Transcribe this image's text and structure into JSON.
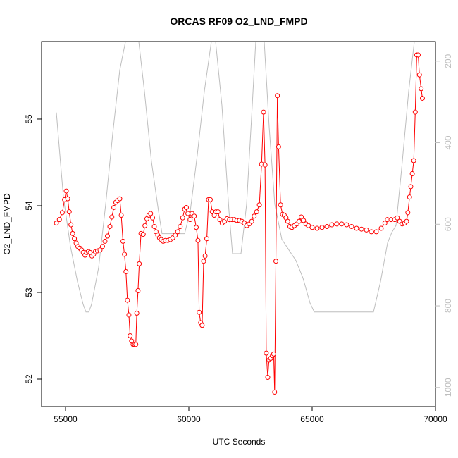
{
  "chart_data": {
    "type": "line",
    "title": "ORCAS RF09 O2_LND_FMPD",
    "xlabel": "UTC Seconds",
    "ylabel": "O2_LND_FMPD",
    "xlim": [
      54029,
      70000
    ],
    "xticks": [
      55000,
      60000,
      65000,
      70000
    ],
    "ylim": [
      51.683,
      55.894
    ],
    "yticks": [
      52,
      53,
      54,
      55
    ],
    "y2lim": [
      1047,
      152
    ],
    "y2ticks": [
      200,
      400,
      600,
      800,
      1000
    ],
    "series": [
      {
        "color": "#bebebe",
        "axis": "y2",
        "marker": "none",
        "x": [
          54629,
          54771,
          54914,
          55200,
          55486,
          55714,
          55829,
          55943,
          56057,
          56343,
          56629,
          56914,
          57200,
          57657,
          57971,
          58200,
          58486,
          58771,
          58914,
          59343,
          59829,
          60057,
          60343,
          60629,
          60914,
          61000,
          61086,
          61343,
          61629,
          61771,
          62114,
          62343,
          62571,
          62714,
          62886,
          63057,
          63257,
          63486,
          63771,
          64343,
          64629,
          64914,
          65086,
          67486,
          67771,
          68057,
          68229,
          68400,
          68629,
          68914,
          69143,
          69257
        ],
        "values": [
          326,
          430,
          533,
          654,
          741,
          796,
          815,
          815,
          796,
          706,
          551,
          378,
          222,
          84,
          152,
          274,
          447,
          568,
          623,
          623,
          623,
          568,
          430,
          274,
          152,
          101,
          152,
          309,
          568,
          672,
          672,
          551,
          309,
          152,
          101,
          152,
          361,
          551,
          637,
          689,
          732,
          793,
          815,
          815,
          741,
          646,
          620,
          603,
          464,
          274,
          152,
          101
        ]
      },
      {
        "color": "#ff0000",
        "marker": "circle",
        "x": [
          54630,
          54750,
          54870,
          54960,
          55030,
          55090,
          55150,
          55220,
          55290,
          55360,
          55430,
          55500,
          55580,
          55650,
          55720,
          55790,
          55860,
          55930,
          56000,
          56070,
          56140,
          56210,
          56300,
          56400,
          56500,
          56600,
          56700,
          56800,
          56880,
          56960,
          57040,
          57120,
          57200,
          57260,
          57330,
          57390,
          57450,
          57510,
          57570,
          57620,
          57680,
          57740,
          57800,
          57850,
          57890,
          57940,
          57990,
          58060,
          58150,
          58220,
          58300,
          58380,
          58450,
          58530,
          58600,
          58670,
          58740,
          58810,
          58880,
          58960,
          59050,
          59150,
          59250,
          59350,
          59450,
          59550,
          59650,
          59750,
          59830,
          59900,
          59960,
          60050,
          60130,
          60220,
          60300,
          60370,
          60420,
          60480,
          60540,
          60600,
          60660,
          60730,
          60800,
          60870,
          60950,
          61030,
          61100,
          61180,
          61260,
          61350,
          61450,
          61550,
          61650,
          61750,
          61850,
          61950,
          62050,
          62150,
          62250,
          62350,
          62450,
          62550,
          62650,
          62750,
          62860,
          62950,
          63030,
          63090,
          63140,
          63200,
          63250,
          63320,
          63390,
          63440,
          63480,
          63530,
          63590,
          63640,
          63720,
          63800,
          63870,
          63940,
          64010,
          64100,
          64180,
          64280,
          64380,
          64470,
          64560,
          64650,
          64750,
          64850,
          65000,
          65200,
          65400,
          65600,
          65800,
          66000,
          66200,
          66400,
          66600,
          66800,
          67000,
          67200,
          67400,
          67600,
          67800,
          67950,
          68050,
          68200,
          68350,
          68450,
          68550,
          68650,
          68750,
          68830,
          68880,
          68950,
          69000,
          69060,
          69120,
          69180,
          69240,
          69300,
          69350,
          69420,
          69470
        ],
        "values": [
          53.8,
          53.84,
          53.92,
          54.07,
          54.17,
          54.08,
          53.93,
          53.78,
          53.68,
          53.62,
          53.57,
          53.53,
          53.51,
          53.49,
          53.46,
          53.43,
          53.46,
          53.47,
          53.46,
          53.42,
          53.44,
          53.47,
          53.48,
          53.49,
          53.53,
          53.59,
          53.65,
          53.76,
          53.87,
          53.98,
          54.04,
          54.06,
          54.08,
          53.89,
          53.59,
          53.44,
          53.24,
          52.91,
          52.74,
          52.5,
          52.44,
          52.4,
          52.4,
          52.4,
          52.76,
          53.02,
          53.33,
          53.68,
          53.67,
          53.77,
          53.85,
          53.89,
          53.91,
          53.86,
          53.76,
          53.7,
          53.66,
          53.63,
          53.61,
          53.59,
          53.6,
          53.6,
          53.61,
          53.63,
          53.66,
          53.7,
          53.76,
          53.86,
          53.96,
          53.98,
          53.91,
          53.84,
          53.91,
          53.88,
          53.75,
          53.6,
          52.77,
          52.65,
          52.62,
          53.36,
          53.42,
          53.62,
          54.07,
          54.07,
          53.93,
          53.89,
          53.93,
          53.93,
          53.84,
          53.8,
          53.82,
          53.85,
          53.84,
          53.84,
          53.84,
          53.83,
          53.83,
          53.82,
          53.8,
          53.77,
          53.79,
          53.82,
          53.88,
          53.93,
          54.01,
          54.48,
          55.08,
          54.47,
          52.3,
          52.02,
          52.22,
          52.24,
          52.27,
          52.29,
          51.85,
          53.36,
          55.27,
          54.68,
          54.01,
          53.9,
          53.89,
          53.86,
          53.82,
          53.76,
          53.75,
          53.77,
          53.79,
          53.82,
          53.87,
          53.83,
          53.79,
          53.77,
          53.75,
          53.74,
          53.75,
          53.76,
          53.78,
          53.79,
          53.79,
          53.78,
          53.76,
          53.74,
          53.73,
          53.72,
          53.7,
          53.7,
          53.74,
          53.8,
          53.84,
          53.84,
          53.84,
          53.86,
          53.82,
          53.79,
          53.8,
          53.82,
          53.92,
          54.1,
          54.22,
          54.37,
          54.52,
          55.08,
          55.74,
          55.74,
          55.51,
          55.35,
          55.24
        ]
      }
    ]
  }
}
